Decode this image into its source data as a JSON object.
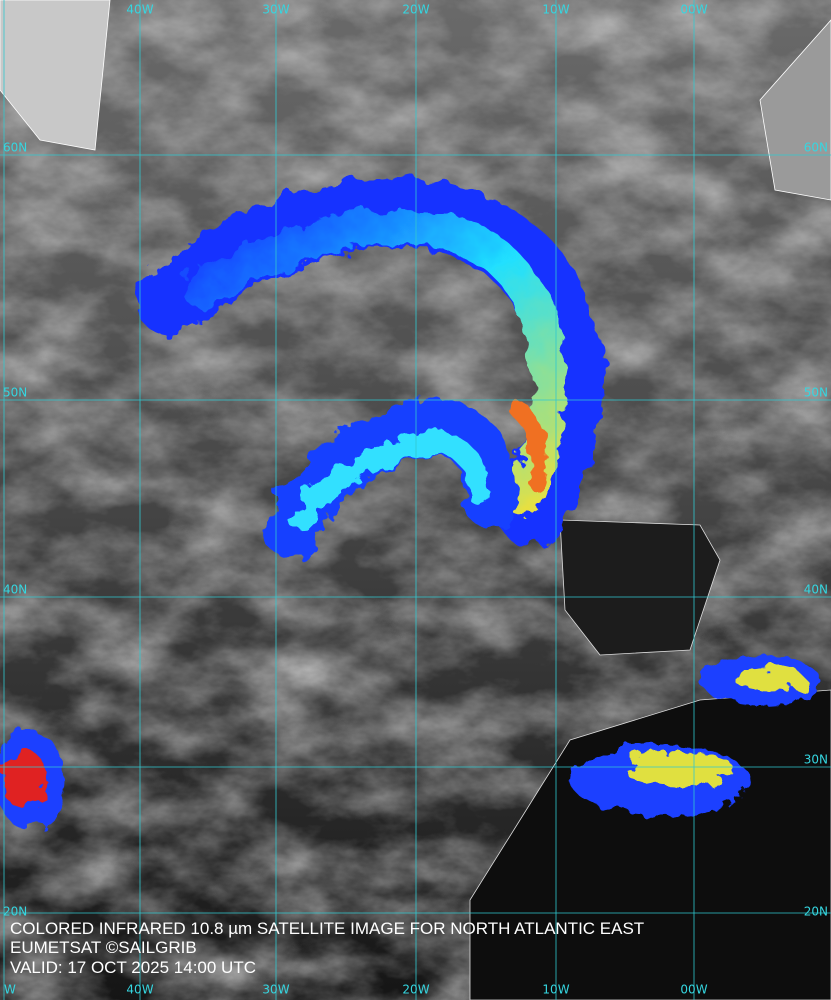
{
  "grid": {
    "top_labels": [
      "40W",
      "30W",
      "20W",
      "10W",
      "00W"
    ],
    "bottom_labels": [
      "W",
      "40W",
      "30W",
      "20W",
      "10W",
      "00W"
    ],
    "left_labels": [
      "60N",
      "50N",
      "40N",
      "20N"
    ],
    "right_labels": [
      "60N",
      "50N",
      "40N",
      "30N",
      "20N"
    ]
  },
  "caption": {
    "lines": [
      "COLORED INFRARED 10.8 µm SATELLITE IMAGE FOR NORTH ATLANTIC EAST",
      "EUMETSAT ©SAILGRIB",
      "VALID:  17 OCT 2025 14:00 UTC"
    ]
  }
}
